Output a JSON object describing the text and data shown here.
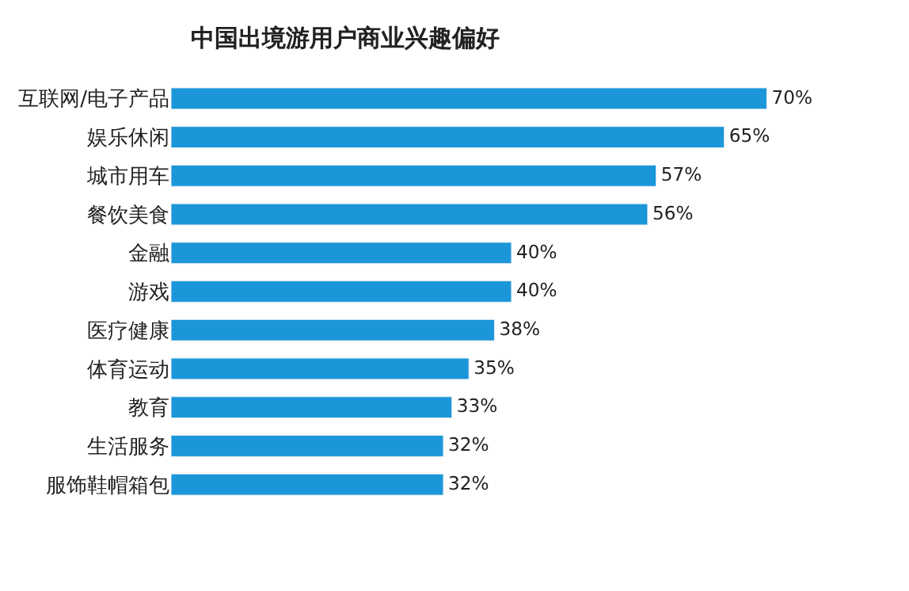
{
  "chart_data": {
    "type": "bar",
    "orientation": "horizontal",
    "title": "中国出境游用户商业兴趣偏好",
    "categories": [
      "互联网/电子产品",
      "娱乐休闲",
      "城市用车",
      "餐饮美食",
      "金融",
      "游戏",
      "医疗健康",
      "体育运动",
      "教育",
      "生活服务",
      "服饰鞋帽箱包"
    ],
    "values": [
      70,
      65,
      57,
      56,
      40,
      40,
      38,
      35,
      33,
      32,
      32
    ],
    "value_labels": [
      "70%",
      "65%",
      "57%",
      "56%",
      "40%",
      "40%",
      "38%",
      "35%",
      "33%",
      "32%",
      "32%"
    ],
    "color": "#1a96d9"
  }
}
